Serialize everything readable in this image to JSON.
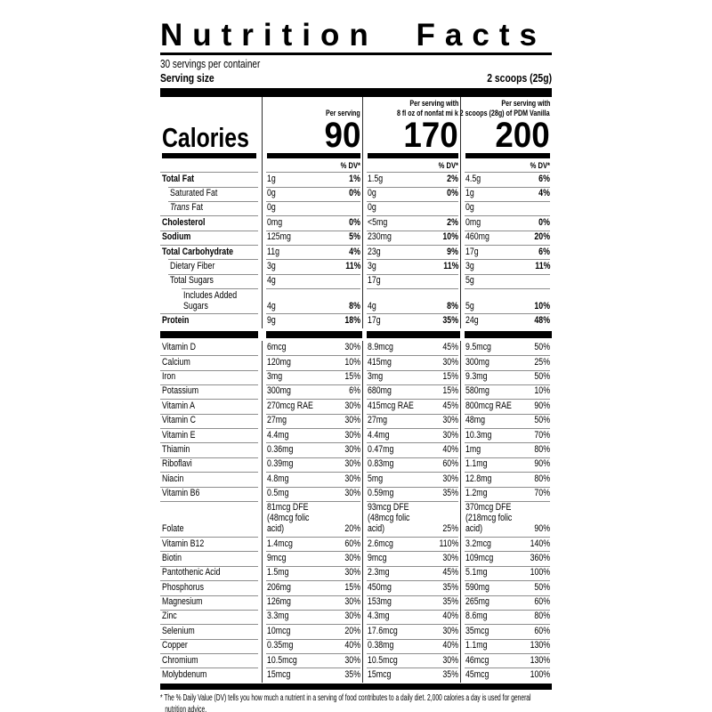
{
  "title": "Nutrition Facts",
  "servings_per_container": "30 servings per container",
  "serving_size_label": "Serving size",
  "serving_size_value": "2 scoops (25g)",
  "calories_label": "Calories",
  "dv_header": "% DV*",
  "columns": [
    {
      "header_line1": "",
      "header_line2": "Per serving",
      "calories": "90"
    },
    {
      "header_line1": "Per serving with",
      "header_line2": "8 fl oz of nonfat mi k",
      "calories": "170"
    },
    {
      "header_line1": "Per serving with",
      "header_line2": "2 scoops (28g) of PDM Vanilla",
      "calories": "200"
    }
  ],
  "main_rows": [
    {
      "label": "Total Fat",
      "bold": true,
      "indent": 0,
      "cells": [
        [
          "1g",
          "1%"
        ],
        [
          "1.5g",
          "2%"
        ],
        [
          "4.5g",
          "6%"
        ]
      ]
    },
    {
      "label": "Saturated Fat",
      "bold": false,
      "indent": 1,
      "cells": [
        [
          "0g",
          "0%"
        ],
        [
          "0g",
          "0%"
        ],
        [
          "1g",
          "4%"
        ]
      ]
    },
    {
      "label_italic": "Trans",
      "label": " Fat",
      "bold": false,
      "indent": 1,
      "cells": [
        [
          "0g",
          ""
        ],
        [
          "0g",
          ""
        ],
        [
          "0g",
          ""
        ]
      ]
    },
    {
      "label": "Cholesterol",
      "bold": true,
      "indent": 0,
      "cells": [
        [
          "0mg",
          "0%"
        ],
        [
          "<5mg",
          "2%"
        ],
        [
          "0mg",
          "0%"
        ]
      ]
    },
    {
      "label": "Sodium",
      "bold": true,
      "indent": 0,
      "cells": [
        [
          "125mg",
          "5%"
        ],
        [
          "230mg",
          "10%"
        ],
        [
          "460mg",
          "20%"
        ]
      ]
    },
    {
      "label": "Total Carbohydrate",
      "bold": true,
      "indent": 0,
      "cells": [
        [
          "11g",
          "4%"
        ],
        [
          "23g",
          "9%"
        ],
        [
          "17g",
          "6%"
        ]
      ]
    },
    {
      "label": "Dietary Fiber",
      "bold": false,
      "indent": 1,
      "cells": [
        [
          "3g",
          "11%"
        ],
        [
          "3g",
          "11%"
        ],
        [
          "3g",
          "11%"
        ]
      ]
    },
    {
      "label": "Total Sugars",
      "bold": false,
      "indent": 1,
      "cells": [
        [
          "4g",
          ""
        ],
        [
          "17g",
          ""
        ],
        [
          "5g",
          ""
        ]
      ]
    },
    {
      "label": "Includes Added Sugars",
      "bold": false,
      "indent": 2,
      "cells": [
        [
          "4g",
          "8%"
        ],
        [
          "4g",
          "8%"
        ],
        [
          "5g",
          "10%"
        ]
      ]
    },
    {
      "label": "Protein",
      "bold": true,
      "indent": 0,
      "cells": [
        [
          "9g",
          "18%"
        ],
        [
          "17g",
          "35%"
        ],
        [
          "24g",
          "48%"
        ]
      ]
    }
  ],
  "vitamin_rows": [
    {
      "label": "Vitamin D",
      "cells": [
        [
          "6mcg",
          "30%"
        ],
        [
          "8.9mcg",
          "45%"
        ],
        [
          "9.5mcg",
          "50%"
        ]
      ]
    },
    {
      "label": "Calcium",
      "cells": [
        [
          "120mg",
          "10%"
        ],
        [
          "415mg",
          "30%"
        ],
        [
          "300mg",
          "25%"
        ]
      ]
    },
    {
      "label": "Iron",
      "cells": [
        [
          "3mg",
          "15%"
        ],
        [
          "3mg",
          "15%"
        ],
        [
          "9.3mg",
          "50%"
        ]
      ]
    },
    {
      "label": "Potassium",
      "cells": [
        [
          "300mg",
          "6%"
        ],
        [
          "680mg",
          "15%"
        ],
        [
          "580mg",
          "10%"
        ]
      ]
    },
    {
      "label": "Vitamin A",
      "cells": [
        [
          "270mcg RAE",
          "30%"
        ],
        [
          "415mcg RAE",
          "45%"
        ],
        [
          "800mcg RAE",
          "90%"
        ]
      ]
    },
    {
      "label": "Vitamin C",
      "cells": [
        [
          "27mg",
          "30%"
        ],
        [
          "27mg",
          "30%"
        ],
        [
          "48mg",
          "50%"
        ]
      ]
    },
    {
      "label": "Vitamin E",
      "cells": [
        [
          "4.4mg",
          "30%"
        ],
        [
          "4.4mg",
          "30%"
        ],
        [
          "10.3mg",
          "70%"
        ]
      ]
    },
    {
      "label": "Thiamin",
      "cells": [
        [
          "0.36mg",
          "30%"
        ],
        [
          "0.47mg",
          "40%"
        ],
        [
          "1mg",
          "80%"
        ]
      ]
    },
    {
      "label": "Riboflavi",
      "cells": [
        [
          "0.39mg",
          "30%"
        ],
        [
          "0.83mg",
          "60%"
        ],
        [
          "1.1mg",
          "90%"
        ]
      ]
    },
    {
      "label": "Niacin",
      "cells": [
        [
          "4.8mg",
          "30%"
        ],
        [
          "5mg",
          "30%"
        ],
        [
          "12.8mg",
          "80%"
        ]
      ]
    },
    {
      "label": "Vitamin B6",
      "cells": [
        [
          "0.5mg",
          "30%"
        ],
        [
          "0.59mg",
          "35%"
        ],
        [
          "1.2mg",
          "70%"
        ]
      ]
    },
    {
      "label": "Folate",
      "cells": [
        [
          "81mcg DFE\n(48mcg folic acid)",
          "20%"
        ],
        [
          "93mcg DFE\n(48mcg folic acid)",
          "25%"
        ],
        [
          "370mcg DFE\n(218mcg folic acid)",
          "90%"
        ]
      ]
    },
    {
      "label": "Vitamin B12",
      "cells": [
        [
          "1.4mcg",
          "60%"
        ],
        [
          "2.6mcg",
          "110%"
        ],
        [
          "3.2mcg",
          "140%"
        ]
      ]
    },
    {
      "label": "Biotin",
      "cells": [
        [
          "9mcg",
          "30%"
        ],
        [
          "9mcg",
          "30%"
        ],
        [
          "109mcg",
          "360%"
        ]
      ]
    },
    {
      "label": "Pantothenic Acid",
      "cells": [
        [
          "1.5mg",
          "30%"
        ],
        [
          "2.3mg",
          "45%"
        ],
        [
          "5.1mg",
          "100%"
        ]
      ]
    },
    {
      "label": "Phosphorus",
      "cells": [
        [
          "206mg",
          "15%"
        ],
        [
          "450mg",
          "35%"
        ],
        [
          "590mg",
          "50%"
        ]
      ]
    },
    {
      "label": "Magnesium",
      "cells": [
        [
          "126mg",
          "30%"
        ],
        [
          "153mg",
          "35%"
        ],
        [
          "265mg",
          "60%"
        ]
      ]
    },
    {
      "label": "Zinc",
      "cells": [
        [
          "3.3mg",
          "30%"
        ],
        [
          "4.3mg",
          "40%"
        ],
        [
          "8.6mg",
          "80%"
        ]
      ]
    },
    {
      "label": "Selenium",
      "cells": [
        [
          "10mcg",
          "20%"
        ],
        [
          "17.6mcg",
          "30%"
        ],
        [
          "35mcg",
          "60%"
        ]
      ]
    },
    {
      "label": "Copper",
      "cells": [
        [
          "0.35mg",
          "40%"
        ],
        [
          "0.38mg",
          "40%"
        ],
        [
          "1.1mg",
          "130%"
        ]
      ]
    },
    {
      "label": "Chromium",
      "cells": [
        [
          "10.5mcg",
          "30%"
        ],
        [
          "10.5mcg",
          "30%"
        ],
        [
          "46mcg",
          "130%"
        ]
      ]
    },
    {
      "label": "Molybdenum",
      "cells": [
        [
          "15mcg",
          "35%"
        ],
        [
          "15mcg",
          "35%"
        ],
        [
          "45mcg",
          "100%"
        ]
      ]
    }
  ],
  "footnote": "* The % Daily Value (DV) tells you how much a nutrient in a serving of food contributes to a daily diet. 2,000 calories a day is used for general nutrition advice.",
  "colors": {
    "text": "#000000",
    "background": "#ffffff",
    "hairline": "#8e8e8e",
    "divider": "#2e2e2e"
  }
}
